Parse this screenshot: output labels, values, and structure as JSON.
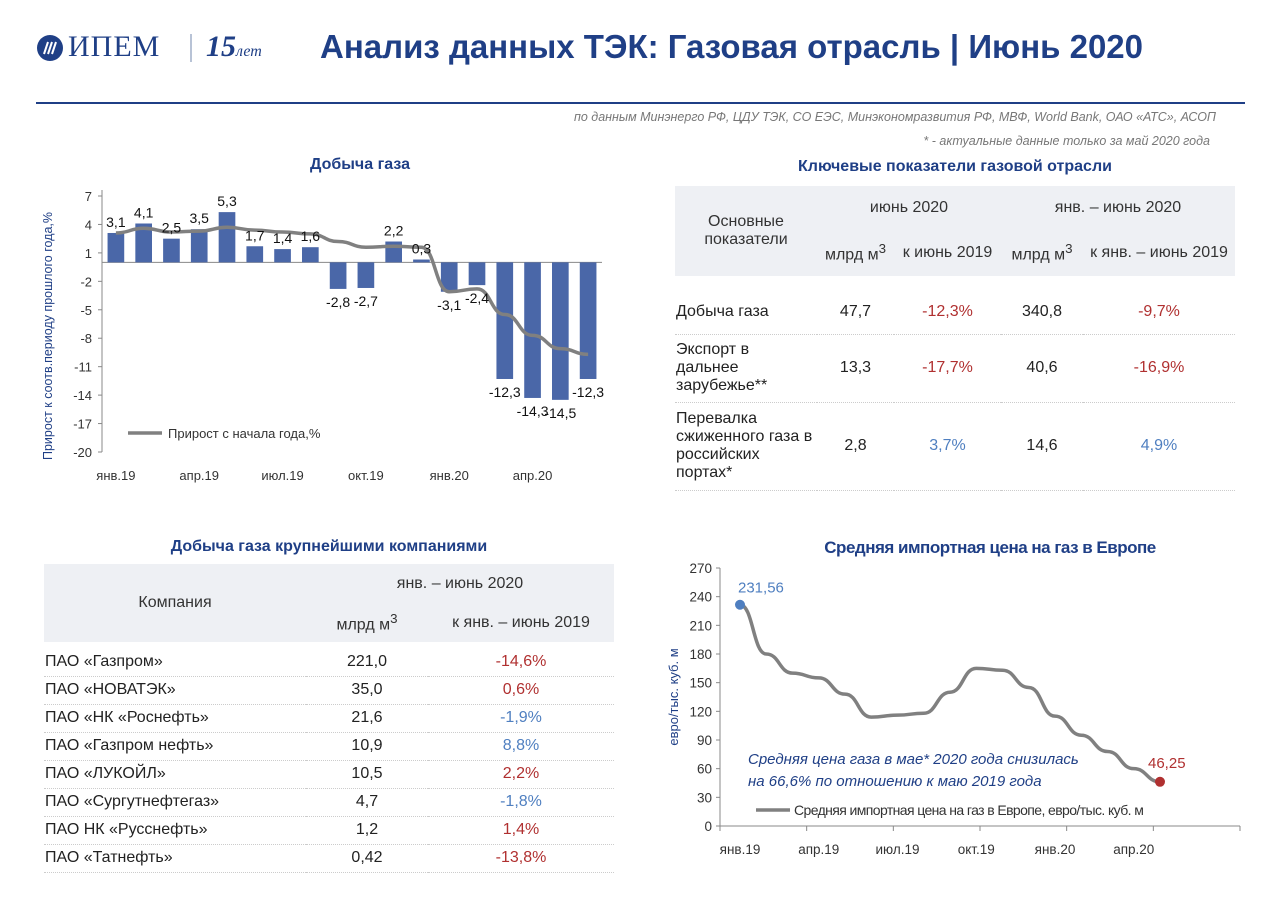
{
  "header": {
    "logo_text": "ИПЕМ",
    "logo_years_num": "15",
    "logo_years_word": "лет",
    "title": "Анализ данных ТЭК: Газовая отрасль | Июнь 2020",
    "source": "по данным Минэнерго РФ, ЦДУ ТЭК, СО ЕЭС, Минэкономразвития РФ, МВФ, World Bank, ОАО «АТС», АСОП",
    "note": "* - актуальные данные только за май 2020 года"
  },
  "colors": {
    "brand": "#1f3f86",
    "bar": "#4a67a8",
    "line": "#808080",
    "red": "#b03030",
    "blue": "#4f7fc0"
  },
  "chart_data": [
    {
      "type": "bar",
      "title": "Добыча газа",
      "ylabel": "Прирост к соотв.периоду прошлого года,%",
      "ylim": [
        -20,
        7
      ],
      "yticks": [
        7,
        4,
        1,
        -2,
        -5,
        -8,
        -11,
        -14,
        -17,
        -20
      ],
      "categories": [
        "янв.19",
        "фев.19",
        "мар.19",
        "апр.19",
        "май.19",
        "июн.19",
        "июл.19",
        "авг.19",
        "сен.19",
        "окт.19",
        "ноя.19",
        "дек.19",
        "янв.20",
        "фев.20",
        "мар.20",
        "апр.20",
        "май.20",
        "июн.20"
      ],
      "xtick_labels": [
        "янв.19",
        "апр.19",
        "июл.19",
        "окт.19",
        "янв.20",
        "апр.20"
      ],
      "values": [
        3.1,
        4.1,
        2.5,
        3.5,
        5.3,
        1.7,
        1.4,
        1.6,
        -2.8,
        -2.7,
        2.2,
        0.3,
        -3.1,
        -2.4,
        -12.3,
        -14.3,
        -14.5,
        -12.3
      ],
      "value_labels": [
        "3,1",
        "4,1",
        "2,5",
        "3,5",
        "5,3",
        "1,7",
        "1,4",
        "1,6",
        "-2,8",
        "-2,7",
        "2,2",
        "0,3",
        "-3,1",
        "-2,4",
        "-12,3",
        "-14,3",
        "-14,5",
        "-12,3"
      ],
      "series": [
        {
          "name": "Прирост с начала года,%",
          "type": "line",
          "values": [
            3.1,
            3.6,
            3.2,
            3.3,
            3.7,
            3.4,
            3.2,
            3.0,
            2.2,
            1.6,
            1.7,
            1.6,
            -3.1,
            -2.8,
            -5.5,
            -7.7,
            -9.1,
            -9.7
          ]
        }
      ],
      "legend": "bottom-left",
      "grid": false
    },
    {
      "type": "line",
      "title": "Средняя импортная цена на газ в Европе",
      "ylabel": "евро/тыс. куб. м",
      "ylim": [
        0,
        270
      ],
      "yticks": [
        270,
        240,
        210,
        180,
        150,
        120,
        90,
        60,
        30,
        0
      ],
      "x": [
        "янв.19",
        "фев.19",
        "мар.19",
        "апр.19",
        "май.19",
        "июн.19",
        "июл.19",
        "авг.19",
        "сен.19",
        "окт.19",
        "ноя.19",
        "дек.19",
        "янв.20",
        "фев.20",
        "мар.20",
        "апр.20",
        "май.20"
      ],
      "xtick_labels": [
        "янв.19",
        "апр.19",
        "июл.19",
        "окт.19",
        "янв.20",
        "апр.20"
      ],
      "series": [
        {
          "name": "Средняя импортная цена на газ в Европе, евро/тыс. куб. м",
          "values": [
            231.56,
            180,
            160,
            155,
            138,
            114,
            116,
            118,
            140,
            165,
            163,
            145,
            115,
            95,
            78,
            60,
            46.25
          ]
        }
      ],
      "point_labels": {
        "first": "231,56",
        "last": "46,25"
      },
      "annotation": "Средняя цена газа в мае* 2020 года снизилась на 66,6% по отношению к маю 2019 года",
      "legend": "bottom",
      "grid": false
    }
  ],
  "key_table": {
    "title": "Ключевые показатели газовой отрасли",
    "col_main": "Основные показатели",
    "group1": "июнь 2020",
    "group2": "янв. – июнь 2020",
    "unit_a": "млрд м",
    "unit_b": "к июнь 2019",
    "unit_c": "млрд м",
    "unit_d": "к янв. – июнь 2019",
    "rows": [
      {
        "name": "Добыча газа",
        "v1": "47,7",
        "p1": "-12,3%",
        "v2": "340,8",
        "p2": "-9,7%"
      },
      {
        "name": "Экспорт в дальнее зарубежье**",
        "v1": "13,3",
        "p1": "-17,7%",
        "v2": "40,6",
        "p2": "-16,9%"
      },
      {
        "name": "Перевалка сжиженного газа в российских портах*",
        "v1": "2,8",
        "p1": "3,7%",
        "v2": "14,6",
        "p2": "4,9%"
      }
    ]
  },
  "company_table": {
    "title": "Добыча газа крупнейшими компаниями",
    "col_company": "Компания",
    "group": "янв. – июнь 2020",
    "unit": "млрд м",
    "change": "к янв. – июнь 2019",
    "rows": [
      {
        "name": "ПАО «Газпром»",
        "value": "221,0",
        "change": "-14,6%"
      },
      {
        "name": "ПАО «НОВАТЭК»",
        "value": "35,0",
        "change": "0,6%"
      },
      {
        "name": "ПАО «НК «Роснефть»",
        "value": "21,6",
        "change": "-1,9%"
      },
      {
        "name": "ПАО «Газпром нефть»",
        "value": "10,9",
        "change": "8,8%"
      },
      {
        "name": "ПАО «ЛУКОЙЛ»",
        "value": "10,5",
        "change": "2,2%"
      },
      {
        "name": "ПАО «Сургутнефтегаз»",
        "value": "4,7",
        "change": "-1,8%"
      },
      {
        "name": "ПАО НК «Русснефть»",
        "value": "1,2",
        "change": "1,4%"
      },
      {
        "name": "ПАО «Татнефть»",
        "value": "0,42",
        "change": "-13,8%"
      }
    ]
  }
}
